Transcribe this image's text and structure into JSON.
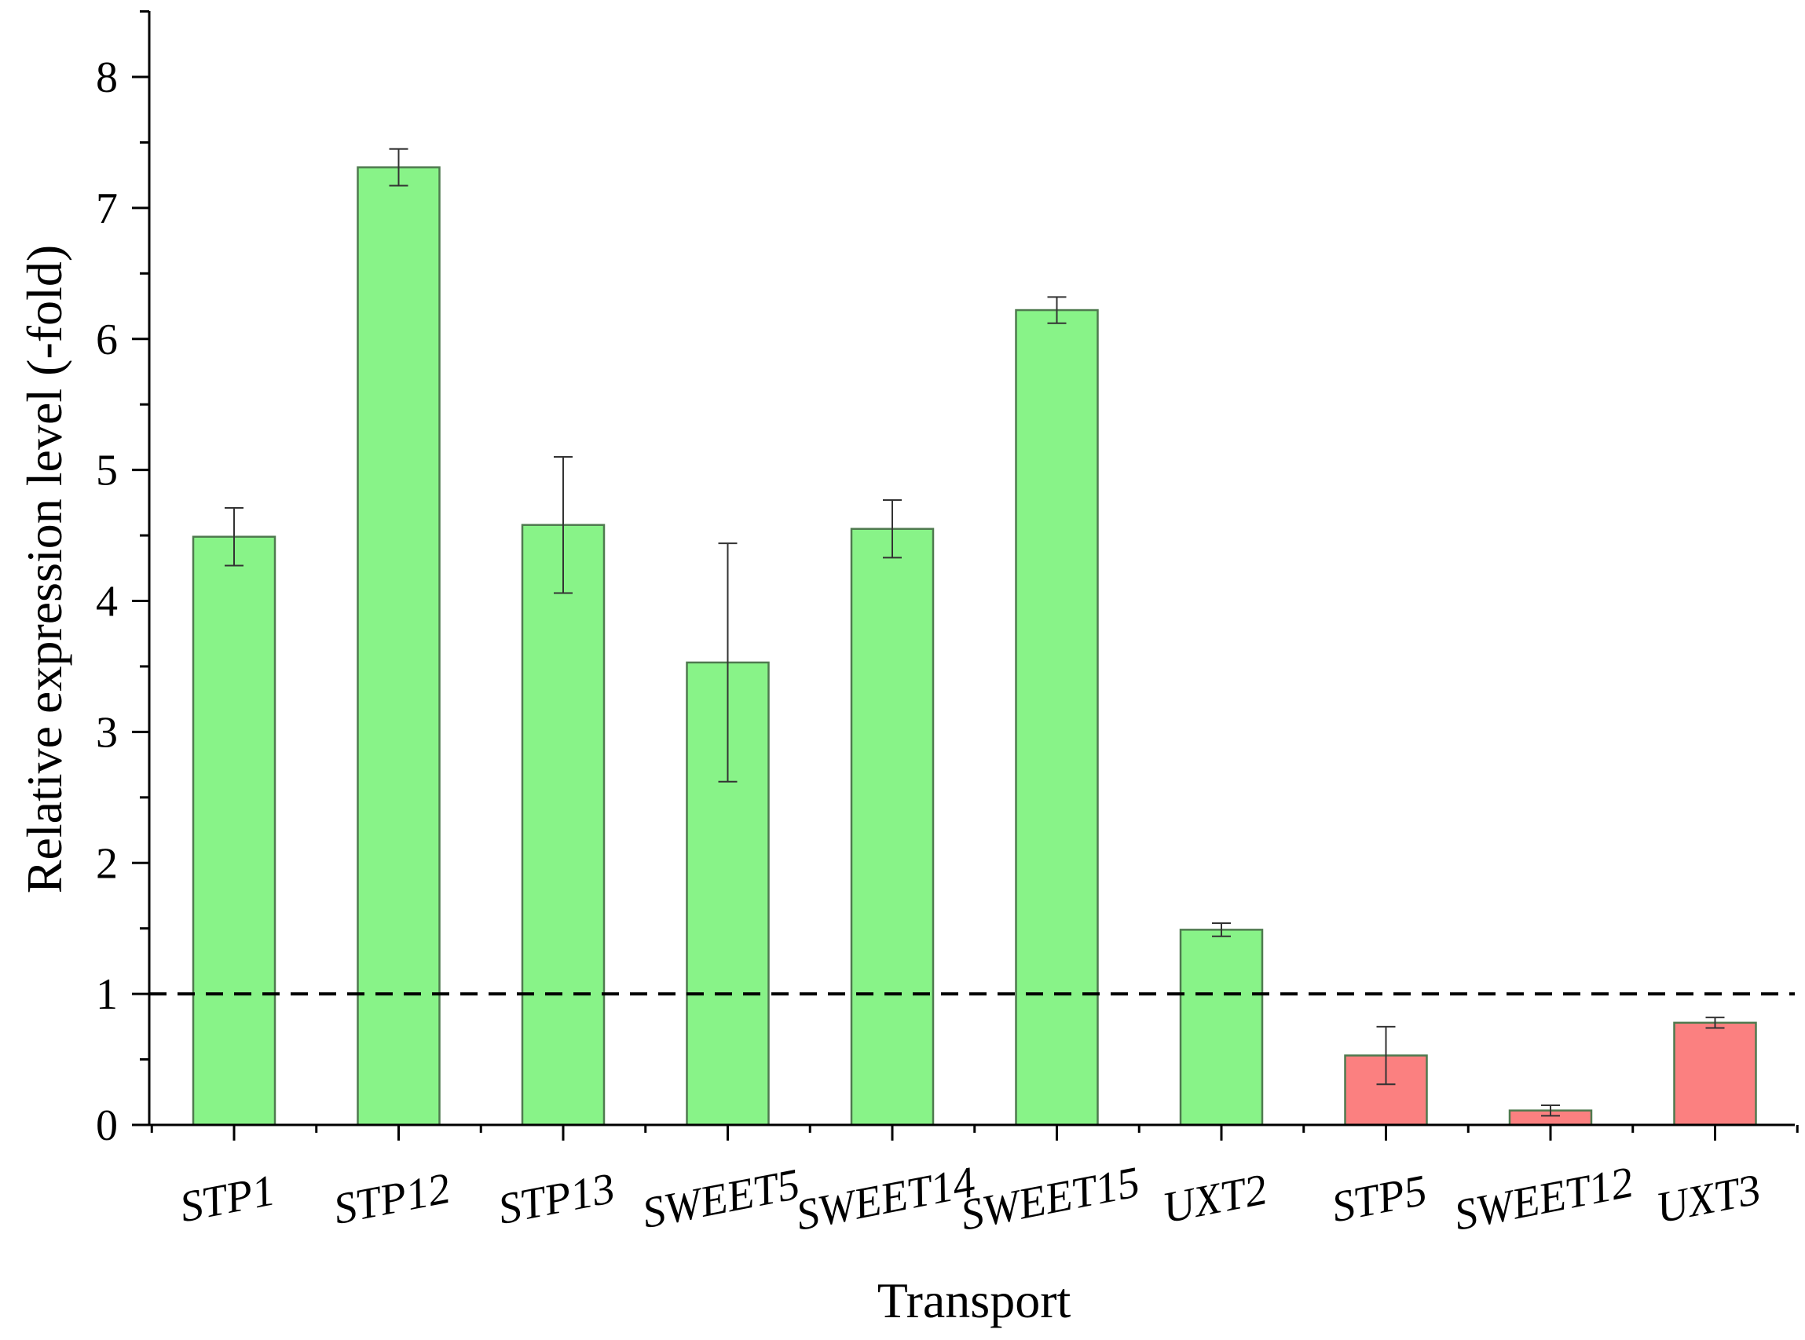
{
  "chart_data": {
    "type": "bar",
    "title": "",
    "xlabel": "Transport",
    "ylabel": "Relative expression level (-fold)",
    "ylim": [
      0,
      8.5
    ],
    "yticks": [
      0,
      1,
      2,
      3,
      4,
      5,
      6,
      7,
      8
    ],
    "grid": false,
    "legend": "none",
    "reference_line": {
      "y": 1,
      "style": "dashed",
      "color": "#000000"
    },
    "categories": [
      "STP1",
      "STP12",
      "STP13",
      "SWEET5",
      "SWEET14",
      "SWEET15",
      "UXT2",
      "STP5",
      "SWEET12",
      "UXT3"
    ],
    "values": [
      4.49,
      7.31,
      4.58,
      3.53,
      4.55,
      6.22,
      1.49,
      0.53,
      0.11,
      0.78
    ],
    "errors": [
      0.22,
      0.14,
      0.52,
      0.91,
      0.22,
      0.1,
      0.05,
      0.22,
      0.04,
      0.04
    ],
    "bar_colors": [
      "#88f388",
      "#88f388",
      "#88f388",
      "#88f388",
      "#88f388",
      "#88f388",
      "#88f388",
      "#fb8080",
      "#fb8080",
      "#fb8080"
    ],
    "bar_stroke": "#4f7a4f"
  }
}
